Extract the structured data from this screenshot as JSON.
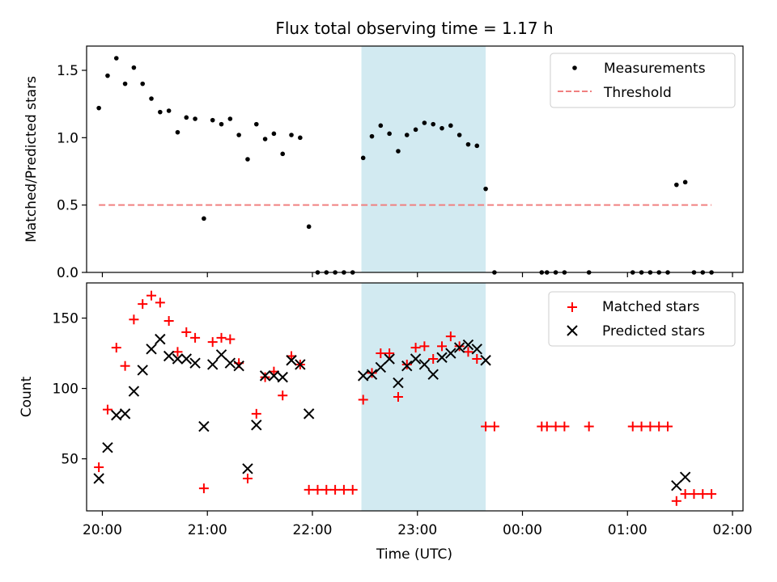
{
  "chart_data": {
    "type": "scatter",
    "title": "Flux total observing time = 1.17 h",
    "xlabel": "Time (UTC)",
    "x_ticks": [
      "20:00",
      "21:00",
      "22:00",
      "23:00",
      "00:00",
      "01:00",
      "02:00"
    ],
    "x_range": [
      "19:51",
      "02:06"
    ],
    "shaded_interval": {
      "start": "22:28",
      "end": "23:39",
      "color": "#add8e6"
    },
    "panels": [
      {
        "ylabel": "Matched/Predicted stars",
        "ylim": [
          0,
          1.68
        ],
        "y_ticks": [
          "0.0",
          "0.5",
          "1.0",
          "1.5"
        ],
        "legend_position": "top-right",
        "series": [
          {
            "name": "Measurements",
            "marker": "dot",
            "color": "#000000",
            "points": [
              [
                "19:58",
                1.22
              ],
              [
                "20:03",
                1.46
              ],
              [
                "20:08",
                1.59
              ],
              [
                "20:13",
                1.4
              ],
              [
                "20:18",
                1.52
              ],
              [
                "20:23",
                1.4
              ],
              [
                "20:28",
                1.29
              ],
              [
                "20:33",
                1.19
              ],
              [
                "20:38",
                1.2
              ],
              [
                "20:43",
                1.04
              ],
              [
                "20:48",
                1.15
              ],
              [
                "20:53",
                1.14
              ],
              [
                "20:58",
                0.4
              ],
              [
                "21:03",
                1.13
              ],
              [
                "21:08",
                1.1
              ],
              [
                "21:13",
                1.14
              ],
              [
                "21:18",
                1.02
              ],
              [
                "21:23",
                0.84
              ],
              [
                "21:28",
                1.1
              ],
              [
                "21:33",
                0.99
              ],
              [
                "21:38",
                1.03
              ],
              [
                "21:43",
                0.88
              ],
              [
                "21:48",
                1.02
              ],
              [
                "21:53",
                1.0
              ],
              [
                "21:58",
                0.34
              ],
              [
                "22:03",
                0.0
              ],
              [
                "22:08",
                0.0
              ],
              [
                "22:13",
                0.0
              ],
              [
                "22:18",
                0.0
              ],
              [
                "22:23",
                0.0
              ],
              [
                "22:29",
                0.85
              ],
              [
                "22:34",
                1.01
              ],
              [
                "22:39",
                1.09
              ],
              [
                "22:44",
                1.03
              ],
              [
                "22:49",
                0.9
              ],
              [
                "22:54",
                1.02
              ],
              [
                "22:59",
                1.06
              ],
              [
                "23:04",
                1.11
              ],
              [
                "23:09",
                1.1
              ],
              [
                "23:14",
                1.07
              ],
              [
                "23:19",
                1.09
              ],
              [
                "23:24",
                1.02
              ],
              [
                "23:29",
                0.95
              ],
              [
                "23:34",
                0.94
              ],
              [
                "23:39",
                0.62
              ],
              [
                "23:44",
                0.0
              ],
              [
                "00:11",
                0.0
              ],
              [
                "00:14",
                0.0
              ],
              [
                "00:19",
                0.0
              ],
              [
                "00:24",
                0.0
              ],
              [
                "00:38",
                0.0
              ],
              [
                "01:03",
                0.0
              ],
              [
                "01:08",
                0.0
              ],
              [
                "01:13",
                0.0
              ],
              [
                "01:18",
                0.0
              ],
              [
                "01:23",
                0.0
              ],
              [
                "01:28",
                0.65
              ],
              [
                "01:33",
                0.67
              ],
              [
                "01:38",
                0.0
              ],
              [
                "01:43",
                0.0
              ],
              [
                "01:48",
                0.0
              ]
            ]
          },
          {
            "name": "Threshold",
            "marker": "dashed-line",
            "color": "#f08080",
            "points": [
              [
                "19:58",
                0.5
              ],
              [
                "01:48",
                0.5
              ]
            ]
          }
        ]
      },
      {
        "ylabel": "Count",
        "ylim": [
          13,
          175
        ],
        "y_ticks": [
          "50",
          "100",
          "150"
        ],
        "legend_position": "top-right",
        "series": [
          {
            "name": "Matched stars",
            "marker": "plus",
            "color": "#ff0000",
            "points": [
              [
                "19:58",
                44
              ],
              [
                "20:03",
                85
              ],
              [
                "20:08",
                129
              ],
              [
                "20:13",
                116
              ],
              [
                "20:18",
                149
              ],
              [
                "20:23",
                160
              ],
              [
                "20:28",
                166
              ],
              [
                "20:33",
                161
              ],
              [
                "20:38",
                148
              ],
              [
                "20:43",
                126
              ],
              [
                "20:48",
                140
              ],
              [
                "20:53",
                136
              ],
              [
                "20:58",
                29
              ],
              [
                "21:03",
                133
              ],
              [
                "21:08",
                136
              ],
              [
                "21:13",
                135
              ],
              [
                "21:18",
                118
              ],
              [
                "21:23",
                36
              ],
              [
                "21:28",
                82
              ],
              [
                "21:33",
                108
              ],
              [
                "21:38",
                112
              ],
              [
                "21:43",
                95
              ],
              [
                "21:48",
                123
              ],
              [
                "21:53",
                117
              ],
              [
                "21:58",
                28
              ],
              [
                "22:03",
                28
              ],
              [
                "22:08",
                28
              ],
              [
                "22:13",
                28
              ],
              [
                "22:18",
                28
              ],
              [
                "22:23",
                28
              ],
              [
                "22:29",
                92
              ],
              [
                "22:34",
                111
              ],
              [
                "22:39",
                125
              ],
              [
                "22:44",
                125
              ],
              [
                "22:49",
                94
              ],
              [
                "22:54",
                117
              ],
              [
                "22:59",
                129
              ],
              [
                "23:04",
                130
              ],
              [
                "23:09",
                121
              ],
              [
                "23:14",
                130
              ],
              [
                "23:19",
                137
              ],
              [
                "23:24",
                130
              ],
              [
                "23:29",
                126
              ],
              [
                "23:34",
                121
              ],
              [
                "23:39",
                73
              ],
              [
                "23:44",
                73
              ],
              [
                "00:11",
                73
              ],
              [
                "00:14",
                73
              ],
              [
                "00:19",
                73
              ],
              [
                "00:24",
                73
              ],
              [
                "00:38",
                73
              ],
              [
                "01:03",
                73
              ],
              [
                "01:08",
                73
              ],
              [
                "01:13",
                73
              ],
              [
                "01:18",
                73
              ],
              [
                "01:23",
                73
              ],
              [
                "01:28",
                20
              ],
              [
                "01:33",
                25
              ],
              [
                "01:38",
                25
              ],
              [
                "01:43",
                25
              ],
              [
                "01:48",
                25
              ]
            ]
          },
          {
            "name": "Predicted stars",
            "marker": "x",
            "color": "#000000",
            "points": [
              [
                "19:58",
                36
              ],
              [
                "20:03",
                58
              ],
              [
                "20:08",
                81
              ],
              [
                "20:13",
                82
              ],
              [
                "20:18",
                98
              ],
              [
                "20:23",
                113
              ],
              [
                "20:28",
                128
              ],
              [
                "20:33",
                135
              ],
              [
                "20:38",
                123
              ],
              [
                "20:43",
                121
              ],
              [
                "20:48",
                121
              ],
              [
                "20:53",
                118
              ],
              [
                "20:58",
                73
              ],
              [
                "21:03",
                117
              ],
              [
                "21:08",
                124
              ],
              [
                "21:13",
                118
              ],
              [
                "21:18",
                116
              ],
              [
                "21:23",
                43
              ],
              [
                "21:28",
                74
              ],
              [
                "21:33",
                109
              ],
              [
                "21:38",
                109
              ],
              [
                "21:43",
                108
              ],
              [
                "21:48",
                120
              ],
              [
                "21:53",
                117
              ],
              [
                "21:58",
                82
              ],
              [
                "22:29",
                109
              ],
              [
                "22:34",
                110
              ],
              [
                "22:39",
                115
              ],
              [
                "22:44",
                121
              ],
              [
                "22:49",
                104
              ],
              [
                "22:54",
                116
              ],
              [
                "22:59",
                121
              ],
              [
                "23:04",
                117
              ],
              [
                "23:09",
                110
              ],
              [
                "23:14",
                122
              ],
              [
                "23:19",
                125
              ],
              [
                "23:24",
                129
              ],
              [
                "23:29",
                131
              ],
              [
                "23:34",
                128
              ],
              [
                "23:39",
                120
              ],
              [
                "01:28",
                31
              ],
              [
                "01:33",
                37
              ]
            ]
          }
        ]
      }
    ]
  }
}
